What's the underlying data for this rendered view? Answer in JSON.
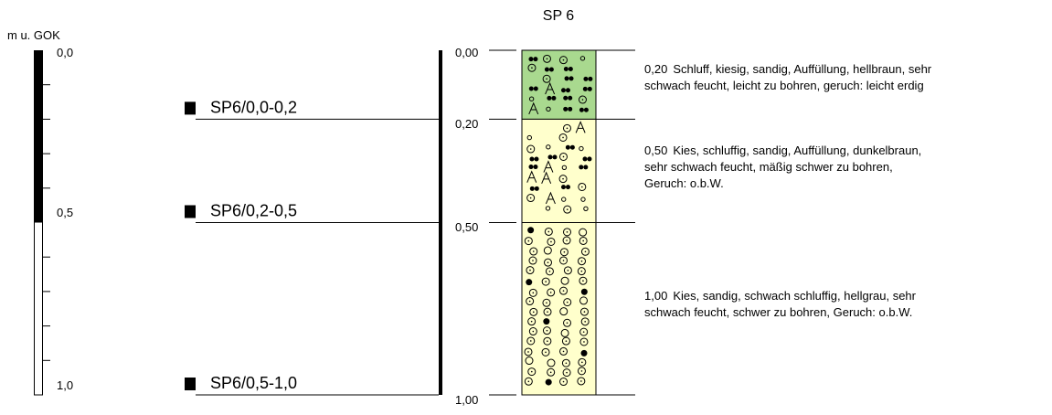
{
  "title": "SP 6",
  "scale": {
    "unit": "m u. GOK",
    "labels": [
      "0,0",
      "0,5",
      "1,0"
    ]
  },
  "samples": [
    "SP6/0,0-0,2",
    "SP6/0,2-0,5",
    "SP6/0,5-1,0"
  ],
  "depth_labels": [
    "0,00",
    "0,20",
    "0,50",
    "1,00"
  ],
  "layers": [
    {
      "depth": "0,20",
      "description": [
        "Schluff, kiesig, sandig, Auffüllung, hellbraun, sehr",
        "schwach feucht, leicht zu bohren, geruch: leicht erdig"
      ]
    },
    {
      "depth": "0,50",
      "description": [
        "Kies, schluffig, sandig, Auffüllung, dunkelbraun,",
        "sehr schwach feucht, mäßig schwer zu bohren,",
        "Geruch: o.b.W."
      ]
    },
    {
      "depth": "1,00",
      "description": [
        "Kies, sandig, schwach schluffig, hellgrau, sehr",
        "schwach feucht, schwer zu bohren, Geruch: o.b.W."
      ]
    }
  ]
}
